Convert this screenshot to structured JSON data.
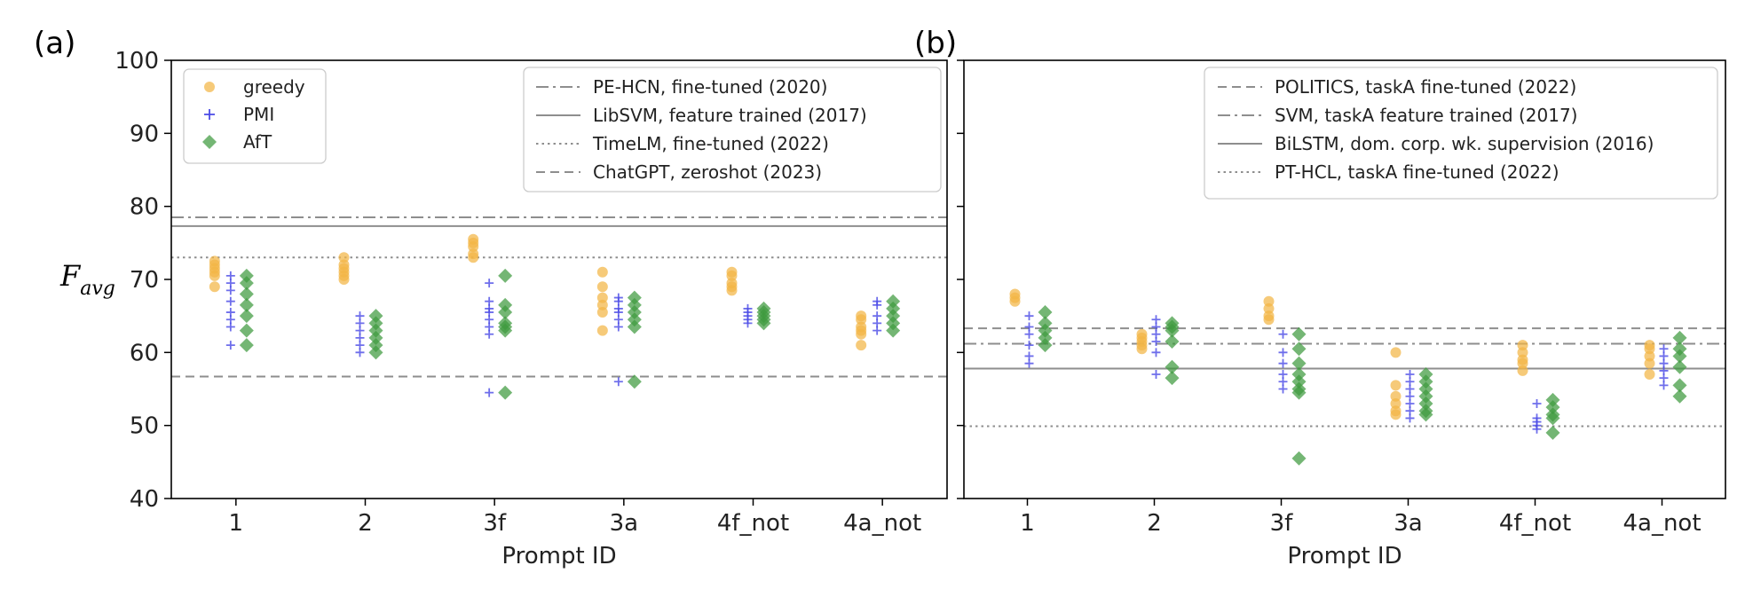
{
  "chart_data": [
    {
      "panel": "(a)",
      "type": "scatter",
      "categories": [
        "1",
        "2",
        "3f",
        "3a",
        "4f_not",
        "4a_not"
      ],
      "xlabel": "Prompt ID",
      "ylabel": "F",
      "ylabel_sub": "avg",
      "ylim": [
        40,
        100
      ],
      "yticks": [
        40,
        50,
        60,
        70,
        80,
        90,
        100
      ],
      "show_ytick_labels": true,
      "grid": false,
      "legend_series_position": "top-left",
      "legend_refs_position": "top-right",
      "series": [
        {
          "name": "greedy",
          "marker": "circle",
          "color": "#f2b545",
          "values": [
            [
              72.5,
              72.0,
              71.5,
              71.0,
              70.5,
              69.0
            ],
            [
              73.0,
              72.0,
              71.5,
              71.0,
              70.5,
              70.0
            ],
            [
              75.5,
              75.0,
              74.5,
              73.5,
              73.0
            ],
            [
              71.0,
              69.0,
              67.5,
              66.5,
              65.5,
              63.0
            ],
            [
              71.0,
              70.5,
              69.5,
              69.0,
              68.5
            ],
            [
              65.0,
              64.5,
              63.5,
              63.0,
              62.5,
              61.0
            ]
          ]
        },
        {
          "name": "PMI",
          "marker": "plus",
          "color": "#4a4ae6",
          "values": [
            [
              70.5,
              69.5,
              68.5,
              67.0,
              65.5,
              64.5,
              63.5,
              61.0
            ],
            [
              65.0,
              64.0,
              63.0,
              62.0,
              61.0,
              60.0
            ],
            [
              69.5,
              67.0,
              66.0,
              65.5,
              64.5,
              63.5,
              62.5,
              54.5
            ],
            [
              67.5,
              67.0,
              66.0,
              65.5,
              64.5,
              63.5,
              56.0
            ],
            [
              66.0,
              65.5,
              65.0,
              64.5,
              64.0
            ],
            [
              67.0,
              66.5,
              65.0,
              64.0,
              63.0
            ]
          ]
        },
        {
          "name": "AfT",
          "marker": "diamond",
          "color": "#3f9a3f",
          "values": [
            [
              70.5,
              69.5,
              68.0,
              66.5,
              65.0,
              63.0,
              61.0
            ],
            [
              65.0,
              64.0,
              63.0,
              62.0,
              61.0,
              60.0
            ],
            [
              70.5,
              66.5,
              65.5,
              64.0,
              63.5,
              63.0,
              54.5
            ],
            [
              67.5,
              66.5,
              65.5,
              64.5,
              63.5,
              56.0
            ],
            [
              66.0,
              65.5,
              65.0,
              64.5,
              64.0
            ],
            [
              67.0,
              66.0,
              65.0,
              64.0,
              63.0
            ]
          ]
        }
      ],
      "reference_lines": [
        {
          "name": "PE-HCN, fine-tuned (2020)",
          "value": 78.5,
          "style": "dashdot"
        },
        {
          "name": "LibSVM, feature trained (2017)",
          "value": 77.3,
          "style": "solid"
        },
        {
          "name": "TimeLM, fine-tuned (2022)",
          "value": 73.0,
          "style": "dotted"
        },
        {
          "name": "ChatGPT, zeroshot (2023)",
          "value": 56.7,
          "style": "dashed"
        }
      ]
    },
    {
      "panel": "(b)",
      "type": "scatter",
      "categories": [
        "1",
        "2",
        "3f",
        "3a",
        "4f_not",
        "4a_not"
      ],
      "xlabel": "Prompt ID",
      "ylim": [
        40,
        100
      ],
      "yticks": [
        40,
        50,
        60,
        70,
        80,
        90,
        100
      ],
      "show_ytick_labels": false,
      "grid": false,
      "legend_refs_position": "top-right",
      "series": [
        {
          "name": "greedy",
          "marker": "circle",
          "color": "#f2b545",
          "values": [
            [
              68.0,
              67.5,
              67.0
            ],
            [
              62.5,
              62.0,
              61.5,
              61.0,
              60.5
            ],
            [
              67.0,
              66.0,
              65.0,
              64.5
            ],
            [
              60.0,
              55.5,
              54.0,
              53.0,
              52.0,
              51.5
            ],
            [
              61.0,
              60.0,
              59.0,
              58.5,
              57.5
            ],
            [
              61.0,
              60.5,
              59.5,
              58.5,
              57.0
            ]
          ]
        },
        {
          "name": "PMI",
          "marker": "plus",
          "color": "#4a4ae6",
          "values": [
            [
              65.0,
              63.5,
              62.5,
              61.0,
              59.5,
              58.5
            ],
            [
              64.5,
              63.5,
              62.5,
              61.5,
              60.0,
              57.0
            ],
            [
              62.5,
              60.0,
              58.5,
              57.0,
              56.0,
              55.0
            ],
            [
              57.0,
              56.0,
              55.0,
              54.0,
              53.0,
              52.0,
              51.0
            ],
            [
              53.0,
              51.0,
              50.5,
              50.0,
              49.5
            ],
            [
              60.5,
              59.5,
              58.5,
              57.5,
              56.5,
              55.5
            ]
          ]
        },
        {
          "name": "AfT",
          "marker": "diamond",
          "color": "#3f9a3f",
          "values": [
            [
              65.5,
              64.0,
              63.0,
              62.0,
              61.0
            ],
            [
              64.0,
              63.5,
              63.0,
              61.5,
              58.0,
              56.5
            ],
            [
              62.5,
              60.5,
              58.5,
              57.0,
              56.0,
              55.0,
              54.5,
              45.5
            ],
            [
              57.0,
              56.0,
              55.0,
              54.0,
              53.0,
              52.0,
              51.5
            ],
            [
              53.5,
              52.5,
              51.5,
              51.0,
              49.0
            ],
            [
              62.0,
              60.5,
              59.5,
              58.0,
              55.5,
              54.0
            ]
          ]
        }
      ],
      "reference_lines": [
        {
          "name": "POLITICS, taskA fine-tuned (2022)",
          "value": 63.3,
          "style": "dashed"
        },
        {
          "name": "SVM, taskA feature trained (2017)",
          "value": 61.2,
          "style": "dashdot"
        },
        {
          "name": "BiLSTM, dom. corp. wk. supervision (2016)",
          "value": 57.8,
          "style": "solid"
        },
        {
          "name": "PT-HCL, taskA fine-tuned (2022)",
          "value": 49.9,
          "style": "dotted"
        }
      ]
    }
  ]
}
